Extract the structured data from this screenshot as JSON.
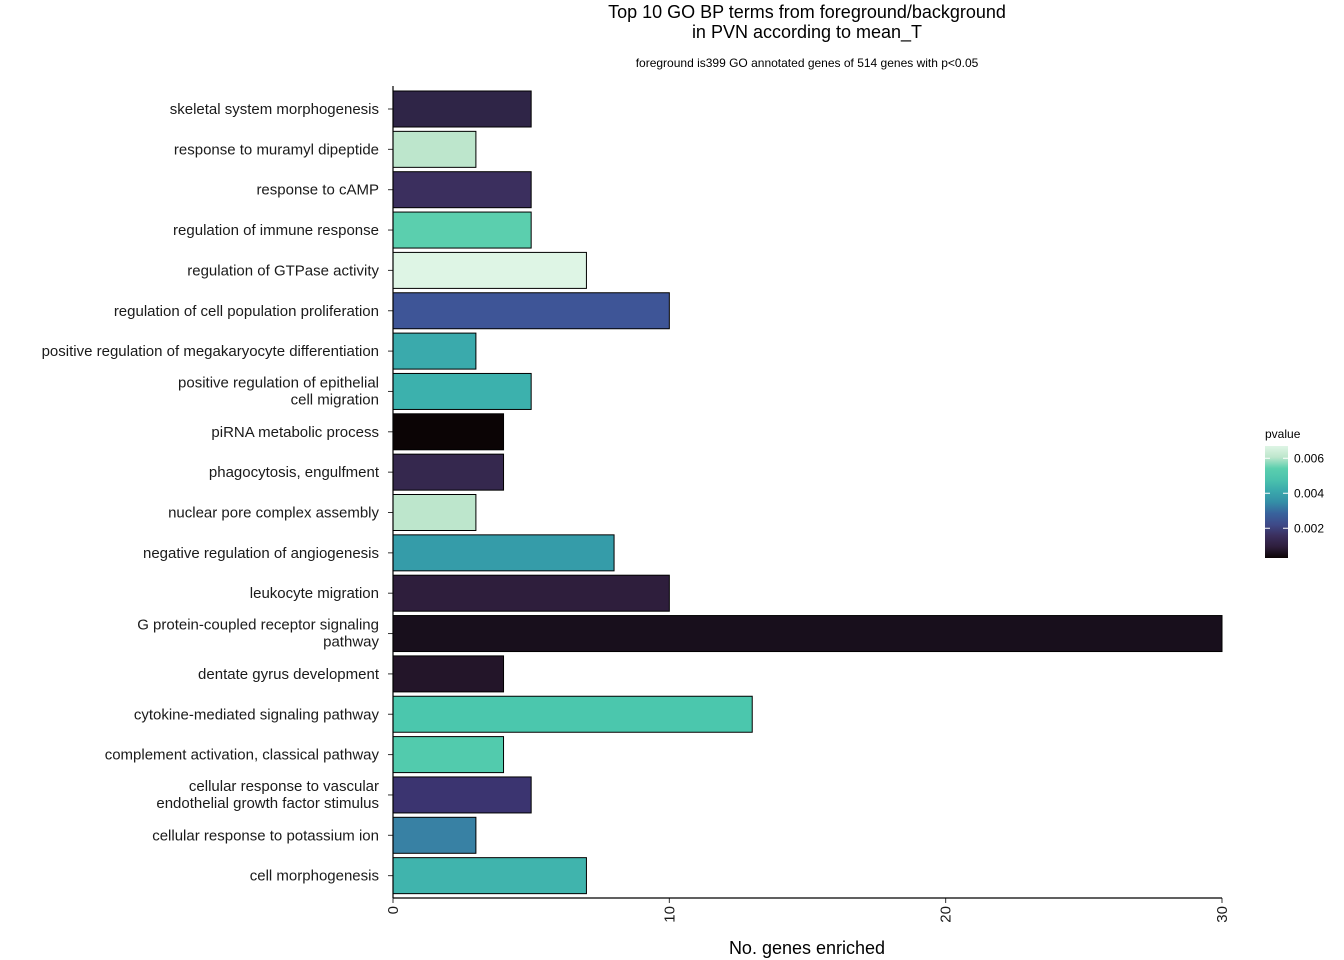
{
  "chart_data": {
    "type": "bar",
    "orientation": "horizontal",
    "title": "Top 10 GO BP terms from foreground/background",
    "title_line2": "in PVN according to mean_T",
    "subtitle": "foreground is399 GO annotated genes of 514 genes with p<0.05",
    "xlabel": "No. genes enriched",
    "ylabel": "",
    "xlim": [
      0,
      30
    ],
    "xticks": [
      0,
      10,
      20,
      30
    ],
    "color_scale": {
      "title": "pvalue",
      "min": 0.0003,
      "max": 0.0067,
      "ticks": [
        {
          "value": 0.006,
          "label": "0.006"
        },
        {
          "value": 0.004,
          "label": "0.004"
        },
        {
          "value": 0.002,
          "label": "0.002"
        }
      ],
      "stops": [
        "#0b0405",
        "#2e1e3c",
        "#3b2f5e",
        "#3e4a89",
        "#38639d",
        "#348fa7",
        "#3aa9ac",
        "#4bc2ad",
        "#5bcfae",
        "#bde6cc",
        "#def5e5"
      ]
    },
    "categories": [
      {
        "label": "skeletal system morphogenesis",
        "lines": [
          "skeletal system morphogenesis"
        ],
        "value": 5,
        "pvalue": 0.0011,
        "color": "#2f2547"
      },
      {
        "label": "response to muramyl dipeptide",
        "lines": [
          "response to muramyl dipeptide"
        ],
        "value": 3,
        "pvalue": 0.0063,
        "color": "#bde6cc"
      },
      {
        "label": "response to cAMP",
        "lines": [
          "response to cAMP"
        ],
        "value": 5,
        "pvalue": 0.0015,
        "color": "#3b2f5e"
      },
      {
        "label": "regulation of immune response",
        "lines": [
          "regulation of immune response"
        ],
        "value": 5,
        "pvalue": 0.0055,
        "color": "#5bcfae"
      },
      {
        "label": "regulation of GTPase activity",
        "lines": [
          "regulation of GTPase activity"
        ],
        "value": 7,
        "pvalue": 0.0067,
        "color": "#def5e5"
      },
      {
        "label": "regulation of cell population proliferation",
        "lines": [
          "regulation of cell population proliferation"
        ],
        "value": 10,
        "pvalue": 0.0022,
        "color": "#3e5597"
      },
      {
        "label": "positive regulation of megakaryocyte differentiation",
        "lines": [
          "positive regulation of megakaryocyte differentiation"
        ],
        "value": 3,
        "pvalue": 0.0044,
        "color": "#3aaaac"
      },
      {
        "label": "positive regulation of epithelial cell migration",
        "lines": [
          "positive regulation of epithelial",
          "cell migration"
        ],
        "value": 5,
        "pvalue": 0.0045,
        "color": "#3cb1ad"
      },
      {
        "label": "piRNA metabolic process",
        "lines": [
          "piRNA metabolic process"
        ],
        "value": 4,
        "pvalue": 0.0003,
        "color": "#0b0405"
      },
      {
        "label": "phagocytosis, engulfment",
        "lines": [
          "phagocytosis, engulfment"
        ],
        "value": 4,
        "pvalue": 0.0013,
        "color": "#35284e"
      },
      {
        "label": "nuclear pore complex assembly",
        "lines": [
          "nuclear pore complex assembly"
        ],
        "value": 3,
        "pvalue": 0.0063,
        "color": "#bde6cc"
      },
      {
        "label": "negative regulation of angiogenesis",
        "lines": [
          "negative regulation of angiogenesis"
        ],
        "value": 8,
        "pvalue": 0.0038,
        "color": "#359ca9"
      },
      {
        "label": "leukocyte migration",
        "lines": [
          "leukocyte migration"
        ],
        "value": 10,
        "pvalue": 0.0008,
        "color": "#2e1e3c"
      },
      {
        "label": "G protein-coupled receptor signaling pathway",
        "lines": [
          "G protein-coupled receptor signaling",
          "pathway"
        ],
        "value": 30,
        "pvalue": 0.0004,
        "color": "#180f1c"
      },
      {
        "label": "dentate gyrus development",
        "lines": [
          "dentate gyrus development"
        ],
        "value": 4,
        "pvalue": 0.0006,
        "color": "#231529"
      },
      {
        "label": "cytokine-mediated signaling pathway",
        "lines": [
          "cytokine-mediated signaling pathway"
        ],
        "value": 13,
        "pvalue": 0.0052,
        "color": "#4bc7ad"
      },
      {
        "label": "complement activation, classical pathway",
        "lines": [
          "complement activation, classical pathway"
        ],
        "value": 4,
        "pvalue": 0.0053,
        "color": "#52cbad"
      },
      {
        "label": "cellular response to vascular endothelial growth factor stimulus",
        "lines": [
          "cellular response to vascular",
          "endothelial growth factor stimulus"
        ],
        "value": 5,
        "pvalue": 0.0016,
        "color": "#3b3470"
      },
      {
        "label": "cellular response to potassium ion",
        "lines": [
          "cellular response to potassium ion"
        ],
        "value": 3,
        "pvalue": 0.0031,
        "color": "#3881a4"
      },
      {
        "label": "cell morphogenesis",
        "lines": [
          "cell morphogenesis"
        ],
        "value": 7,
        "pvalue": 0.0045,
        "color": "#40b4ad"
      }
    ]
  }
}
